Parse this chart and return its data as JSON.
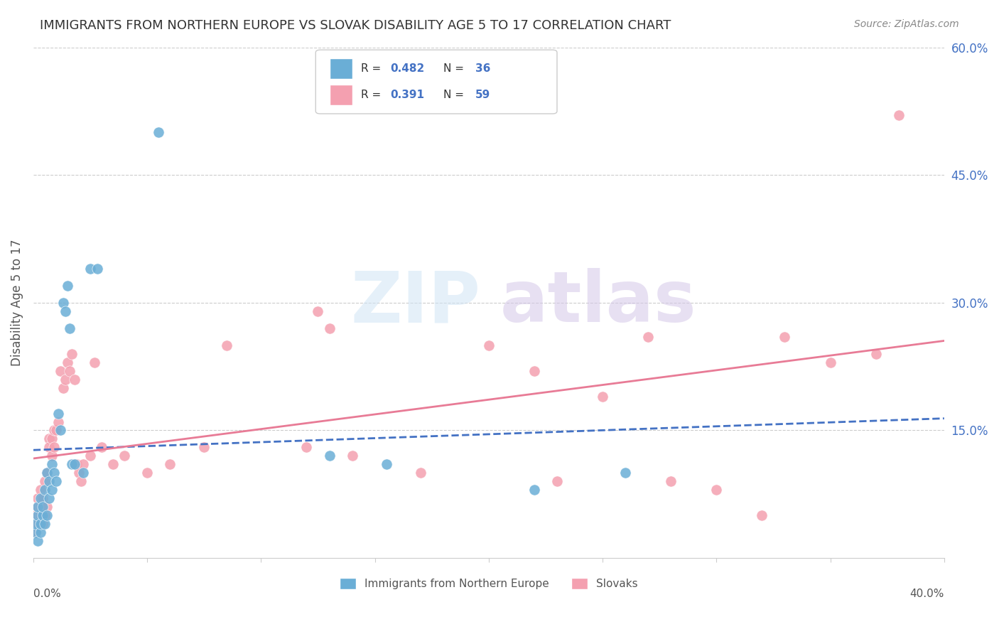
{
  "title": "IMMIGRANTS FROM NORTHERN EUROPE VS SLOVAK DISABILITY AGE 5 TO 17 CORRELATION CHART",
  "source": "Source: ZipAtlas.com",
  "ylabel": "Disability Age 5 to 17",
  "right_yticks": [
    "60.0%",
    "45.0%",
    "30.0%",
    "15.0%"
  ],
  "right_ytick_vals": [
    0.6,
    0.45,
    0.3,
    0.15
  ],
  "legend1_label": "Immigrants from Northern Europe",
  "legend2_label": "Slovaks",
  "R1": 0.482,
  "N1": 36,
  "R2": 0.391,
  "N2": 59,
  "blue_color": "#6aaed6",
  "pink_color": "#f4a0b0",
  "blue_line_color": "#4472c4",
  "pink_line_color": "#e87b96",
  "xlim": [
    0,
    0.4
  ],
  "ylim": [
    0,
    0.6
  ],
  "blue_points_x": [
    0.001,
    0.001,
    0.002,
    0.002,
    0.002,
    0.003,
    0.003,
    0.003,
    0.004,
    0.004,
    0.005,
    0.005,
    0.006,
    0.006,
    0.007,
    0.007,
    0.008,
    0.008,
    0.009,
    0.01,
    0.011,
    0.012,
    0.013,
    0.014,
    0.015,
    0.016,
    0.017,
    0.018,
    0.022,
    0.025,
    0.028,
    0.055,
    0.13,
    0.155,
    0.22,
    0.26
  ],
  "blue_points_y": [
    0.03,
    0.04,
    0.02,
    0.05,
    0.06,
    0.03,
    0.04,
    0.07,
    0.05,
    0.06,
    0.04,
    0.08,
    0.05,
    0.1,
    0.07,
    0.09,
    0.08,
    0.11,
    0.1,
    0.09,
    0.17,
    0.15,
    0.3,
    0.29,
    0.32,
    0.27,
    0.11,
    0.11,
    0.1,
    0.34,
    0.34,
    0.5,
    0.12,
    0.11,
    0.08,
    0.1
  ],
  "pink_points_x": [
    0.001,
    0.001,
    0.002,
    0.002,
    0.002,
    0.003,
    0.003,
    0.003,
    0.004,
    0.004,
    0.005,
    0.005,
    0.006,
    0.006,
    0.007,
    0.007,
    0.008,
    0.008,
    0.009,
    0.009,
    0.01,
    0.011,
    0.012,
    0.013,
    0.014,
    0.015,
    0.016,
    0.017,
    0.018,
    0.019,
    0.02,
    0.021,
    0.022,
    0.025,
    0.027,
    0.03,
    0.035,
    0.04,
    0.05,
    0.06,
    0.075,
    0.085,
    0.12,
    0.125,
    0.13,
    0.14,
    0.17,
    0.2,
    0.22,
    0.23,
    0.25,
    0.27,
    0.28,
    0.3,
    0.32,
    0.33,
    0.35,
    0.37,
    0.38
  ],
  "pink_points_y": [
    0.03,
    0.05,
    0.04,
    0.06,
    0.07,
    0.05,
    0.06,
    0.08,
    0.04,
    0.07,
    0.05,
    0.09,
    0.06,
    0.1,
    0.14,
    0.13,
    0.14,
    0.12,
    0.13,
    0.15,
    0.15,
    0.16,
    0.22,
    0.2,
    0.21,
    0.23,
    0.22,
    0.24,
    0.21,
    0.11,
    0.1,
    0.09,
    0.11,
    0.12,
    0.23,
    0.13,
    0.11,
    0.12,
    0.1,
    0.11,
    0.13,
    0.25,
    0.13,
    0.29,
    0.27,
    0.12,
    0.1,
    0.25,
    0.22,
    0.09,
    0.19,
    0.26,
    0.09,
    0.08,
    0.05,
    0.26,
    0.23,
    0.24,
    0.52
  ]
}
